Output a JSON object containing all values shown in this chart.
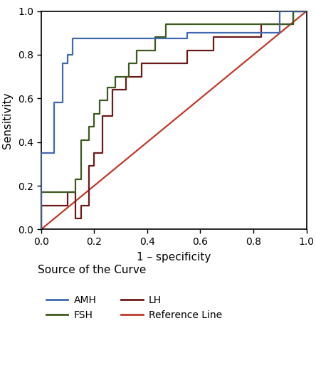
{
  "title": "",
  "xlabel": "1 – specificity",
  "ylabel": "Sensitivity",
  "xlim": [
    0.0,
    1.0
  ],
  "ylim": [
    0.0,
    1.0
  ],
  "xticks": [
    0.0,
    0.2,
    0.4,
    0.6,
    0.8,
    1.0
  ],
  "yticks": [
    0.0,
    0.2,
    0.4,
    0.6,
    0.8,
    1.0
  ],
  "legend_title": "Source of the Curve",
  "AMH_color": "#4169B0",
  "LH_color": "#6B1A1A",
  "FSH_color": "#3D5A1F",
  "ref_color": "#C0392B",
  "AMH_x": [
    0.0,
    0.0,
    0.05,
    0.05,
    0.08,
    0.08,
    0.1,
    0.1,
    0.12,
    0.12,
    0.55,
    0.55,
    0.9,
    0.9,
    1.0
  ],
  "AMH_y": [
    0.0,
    0.35,
    0.35,
    0.58,
    0.58,
    0.76,
    0.76,
    0.8,
    0.8,
    0.875,
    0.875,
    0.9,
    0.9,
    1.0,
    1.0
  ],
  "FSH_x": [
    0.0,
    0.0,
    0.13,
    0.13,
    0.15,
    0.15,
    0.18,
    0.18,
    0.2,
    0.2,
    0.22,
    0.22,
    0.25,
    0.25,
    0.28,
    0.28,
    0.3,
    0.3,
    0.33,
    0.33,
    0.36,
    0.36,
    0.4,
    0.4,
    0.43,
    0.43,
    0.47,
    0.47,
    0.53,
    0.53,
    0.57,
    0.57,
    0.6,
    0.6,
    0.95,
    0.95,
    1.0
  ],
  "FSH_y": [
    0.0,
    0.17,
    0.17,
    0.23,
    0.23,
    0.41,
    0.41,
    0.47,
    0.47,
    0.53,
    0.53,
    0.59,
    0.59,
    0.65,
    0.65,
    0.7,
    0.7,
    0.7,
    0.7,
    0.76,
    0.76,
    0.82,
    0.82,
    0.82,
    0.82,
    0.88,
    0.88,
    0.94,
    0.94,
    0.94,
    0.94,
    0.94,
    0.94,
    0.94,
    0.94,
    1.0,
    1.0
  ],
  "LH_x": [
    0.0,
    0.0,
    0.1,
    0.1,
    0.13,
    0.13,
    0.15,
    0.15,
    0.18,
    0.18,
    0.2,
    0.2,
    0.23,
    0.23,
    0.27,
    0.27,
    0.32,
    0.32,
    0.38,
    0.38,
    0.43,
    0.43,
    0.47,
    0.47,
    0.55,
    0.55,
    0.6,
    0.6,
    0.65,
    0.65,
    0.7,
    0.7,
    0.77,
    0.77,
    0.83,
    0.83,
    0.9,
    0.9,
    0.95,
    0.95,
    1.0
  ],
  "LH_y": [
    0.0,
    0.11,
    0.11,
    0.17,
    0.17,
    0.05,
    0.05,
    0.11,
    0.11,
    0.29,
    0.29,
    0.35,
    0.35,
    0.52,
    0.52,
    0.64,
    0.64,
    0.7,
    0.7,
    0.76,
    0.76,
    0.76,
    0.76,
    0.76,
    0.76,
    0.82,
    0.82,
    0.82,
    0.82,
    0.88,
    0.88,
    0.88,
    0.88,
    0.88,
    0.88,
    0.94,
    0.94,
    0.94,
    0.94,
    1.0,
    1.0
  ],
  "background_color": "#FFFFFF",
  "line_width": 1.6,
  "legend_cols": 2,
  "legend_entries": [
    "AMH",
    "FSH",
    "LH",
    "Reference Line"
  ]
}
